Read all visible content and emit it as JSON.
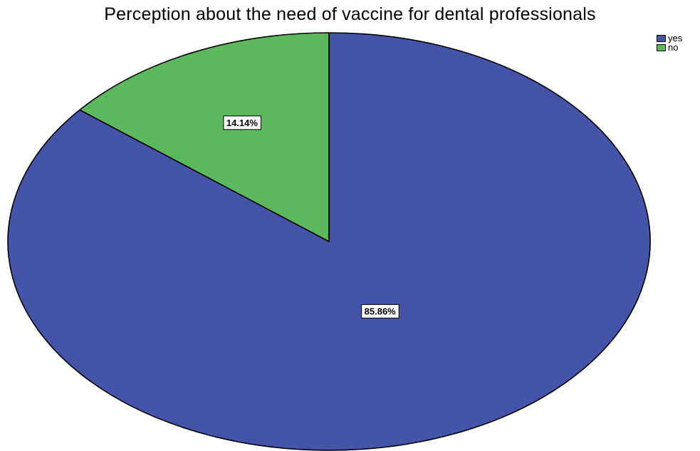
{
  "chart_data": {
    "type": "pie",
    "title": "Perception about  the need  of vaccine for dental professionals",
    "slices": [
      {
        "name": "yes",
        "value": 85.86,
        "label": "85.86%",
        "color": "#4454a8"
      },
      {
        "name": "no",
        "value": 14.14,
        "label": "14.14%",
        "color": "#5cb85c"
      }
    ],
    "legend_position": "top-right"
  }
}
